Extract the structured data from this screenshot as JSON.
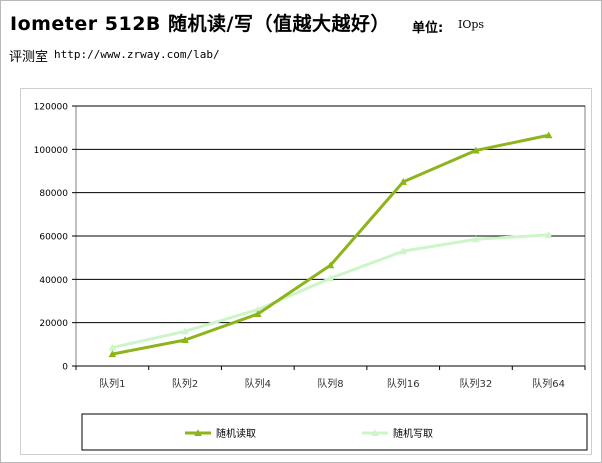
{
  "header": {
    "title": "Iometer 512B 随机读/写（值越大越好）",
    "unit_label": "单位:",
    "unit_value": "IOps",
    "lab_label": "评测室",
    "lab_url": "http://www.zrway.com/lab/"
  },
  "colors": {
    "read_series": "#8db41a",
    "write_series": "#ccf5c8",
    "grid": "#000000",
    "plot_border": "#808080"
  },
  "chart_data": {
    "type": "line",
    "title": "Iometer 512B 随机读/写（值越大越好）",
    "xlabel": "",
    "ylabel": "",
    "categories": [
      "队列1",
      "队列2",
      "队列4",
      "队列8",
      "队列16",
      "队列32",
      "队列64"
    ],
    "ylim": [
      0,
      120000
    ],
    "yticks": [
      0,
      20000,
      40000,
      60000,
      80000,
      100000,
      120000
    ],
    "ytick_labels": [
      "0",
      "20000",
      "40000",
      "60000",
      "80000",
      "100000",
      "120000"
    ],
    "grid": true,
    "legend_position": "bottom",
    "series": [
      {
        "name": "随机读取",
        "values": [
          5500,
          12000,
          24000,
          46500,
          85000,
          99500,
          106500
        ],
        "marker": "triangle"
      },
      {
        "name": "随机写取",
        "values": [
          8500,
          16000,
          26000,
          40500,
          53000,
          58500,
          60500
        ],
        "marker": "triangle"
      }
    ]
  }
}
